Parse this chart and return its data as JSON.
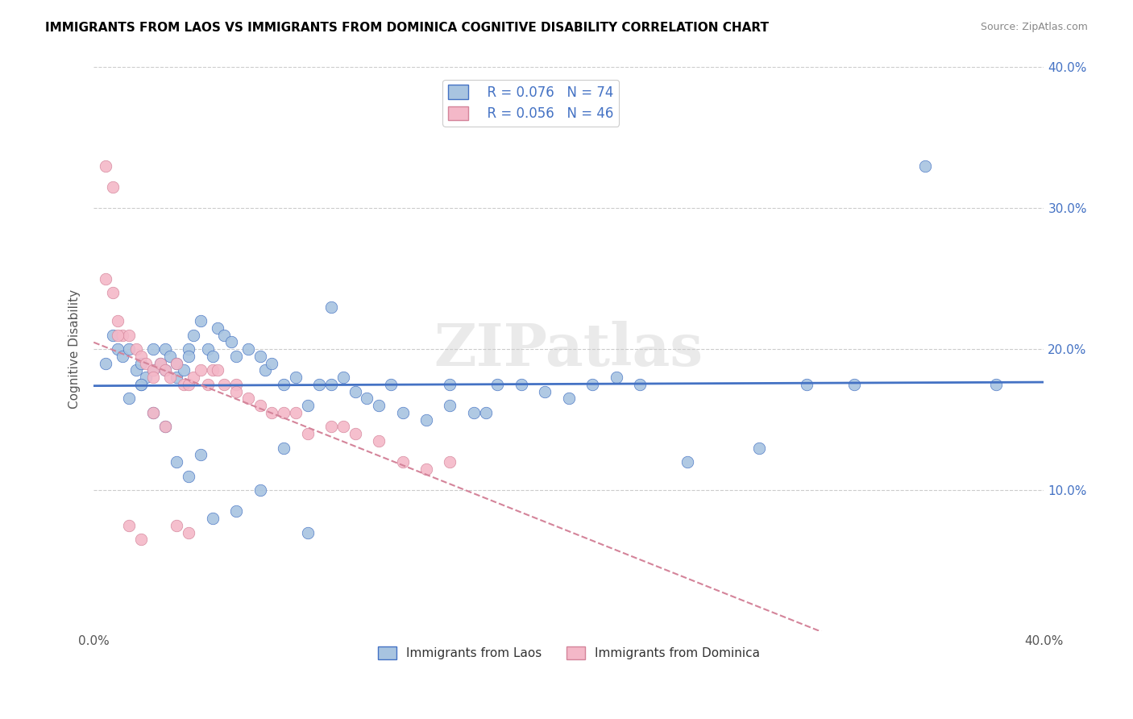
{
  "title": "IMMIGRANTS FROM LAOS VS IMMIGRANTS FROM DOMINICA COGNITIVE DISABILITY CORRELATION CHART",
  "source": "Source: ZipAtlas.com",
  "ylabel": "Cognitive Disability",
  "x_min": 0.0,
  "x_max": 0.4,
  "y_min": 0.0,
  "y_max": 0.4,
  "legend_r1": "R = 0.076",
  "legend_n1": "N = 74",
  "legend_r2": "R = 0.056",
  "legend_n2": "N = 46",
  "color_laos": "#a8c4e0",
  "color_dominica": "#f4b8c8",
  "color_line_laos": "#4472c4",
  "color_line_dominica": "#d4849a",
  "watermark": "ZIPatlas",
  "laos_x": [
    0.005,
    0.008,
    0.01,
    0.012,
    0.015,
    0.018,
    0.02,
    0.02,
    0.022,
    0.025,
    0.025,
    0.028,
    0.03,
    0.03,
    0.032,
    0.035,
    0.035,
    0.038,
    0.04,
    0.04,
    0.042,
    0.045,
    0.048,
    0.05,
    0.052,
    0.055,
    0.058,
    0.06,
    0.065,
    0.07,
    0.072,
    0.075,
    0.08,
    0.085,
    0.09,
    0.095,
    0.1,
    0.105,
    0.11,
    0.115,
    0.12,
    0.125,
    0.13,
    0.14,
    0.15,
    0.16,
    0.165,
    0.17,
    0.18,
    0.19,
    0.2,
    0.21,
    0.22,
    0.23,
    0.25,
    0.28,
    0.3,
    0.32,
    0.35,
    0.38,
    0.015,
    0.02,
    0.025,
    0.03,
    0.035,
    0.04,
    0.045,
    0.05,
    0.06,
    0.07,
    0.08,
    0.09,
    0.1,
    0.15
  ],
  "laos_y": [
    0.19,
    0.21,
    0.2,
    0.195,
    0.2,
    0.185,
    0.19,
    0.175,
    0.18,
    0.2,
    0.185,
    0.19,
    0.2,
    0.185,
    0.195,
    0.19,
    0.18,
    0.185,
    0.2,
    0.195,
    0.21,
    0.22,
    0.2,
    0.195,
    0.215,
    0.21,
    0.205,
    0.195,
    0.2,
    0.195,
    0.185,
    0.19,
    0.175,
    0.18,
    0.16,
    0.175,
    0.175,
    0.18,
    0.17,
    0.165,
    0.16,
    0.175,
    0.155,
    0.15,
    0.16,
    0.155,
    0.155,
    0.175,
    0.175,
    0.17,
    0.165,
    0.175,
    0.18,
    0.175,
    0.12,
    0.13,
    0.175,
    0.175,
    0.33,
    0.175,
    0.165,
    0.175,
    0.155,
    0.145,
    0.12,
    0.11,
    0.125,
    0.08,
    0.085,
    0.1,
    0.13,
    0.07,
    0.23,
    0.175
  ],
  "dominica_x": [
    0.005,
    0.008,
    0.01,
    0.012,
    0.015,
    0.018,
    0.02,
    0.022,
    0.025,
    0.025,
    0.028,
    0.03,
    0.032,
    0.035,
    0.038,
    0.04,
    0.042,
    0.045,
    0.048,
    0.05,
    0.052,
    0.055,
    0.06,
    0.065,
    0.07,
    0.075,
    0.08,
    0.085,
    0.09,
    0.1,
    0.105,
    0.11,
    0.12,
    0.13,
    0.14,
    0.15,
    0.005,
    0.008,
    0.01,
    0.015,
    0.02,
    0.025,
    0.03,
    0.035,
    0.04,
    0.06
  ],
  "dominica_y": [
    0.25,
    0.24,
    0.22,
    0.21,
    0.21,
    0.2,
    0.195,
    0.19,
    0.185,
    0.18,
    0.19,
    0.185,
    0.18,
    0.19,
    0.175,
    0.175,
    0.18,
    0.185,
    0.175,
    0.185,
    0.185,
    0.175,
    0.175,
    0.165,
    0.16,
    0.155,
    0.155,
    0.155,
    0.14,
    0.145,
    0.145,
    0.14,
    0.135,
    0.12,
    0.115,
    0.12,
    0.33,
    0.315,
    0.21,
    0.075,
    0.065,
    0.155,
    0.145,
    0.075,
    0.07,
    0.17
  ]
}
